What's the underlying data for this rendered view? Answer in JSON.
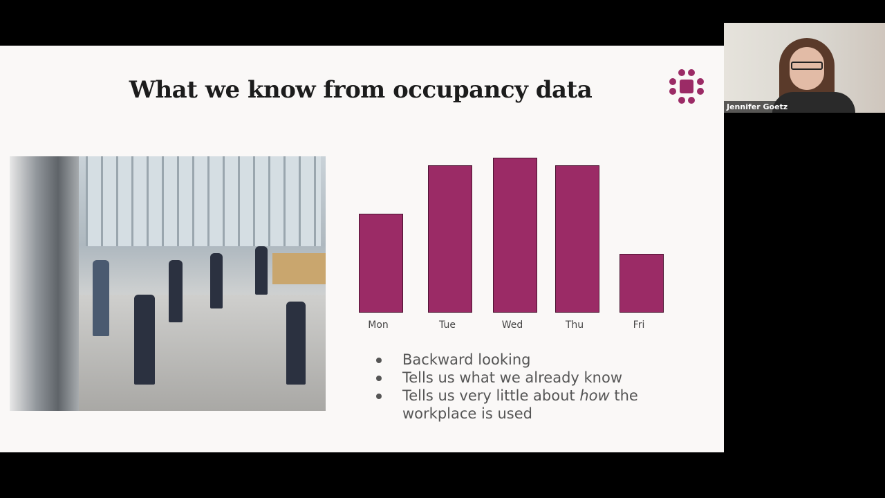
{
  "slide": {
    "title": "What we know from occupancy data",
    "bullets": [
      {
        "text_before": "Backward looking",
        "emphasis": "",
        "text_after": ""
      },
      {
        "text_before": "Tells us what we already know",
        "emphasis": "",
        "text_after": ""
      },
      {
        "text_before": "Tells us very little about ",
        "emphasis": "how",
        "text_after": " the workplace is used"
      }
    ],
    "logo_icon": "dots-around-square-icon",
    "image": "office-lobby-turnstiles-photo"
  },
  "chart_data": {
    "type": "bar",
    "categories": [
      "Mon",
      "Tue",
      "Wed",
      "Thu",
      "Fri"
    ],
    "values": [
      64,
      95,
      100,
      95,
      38
    ],
    "value_note": "relative heights, no axis shown",
    "title": "",
    "xlabel": "",
    "ylabel": "",
    "ylim": [
      0,
      100
    ],
    "grid": false,
    "bar_color": "#9b2b66"
  },
  "participant": {
    "name": "Jennifer Goetz"
  },
  "colors": {
    "accent": "#9b2b66",
    "slide_bg": "#faf8f7"
  }
}
